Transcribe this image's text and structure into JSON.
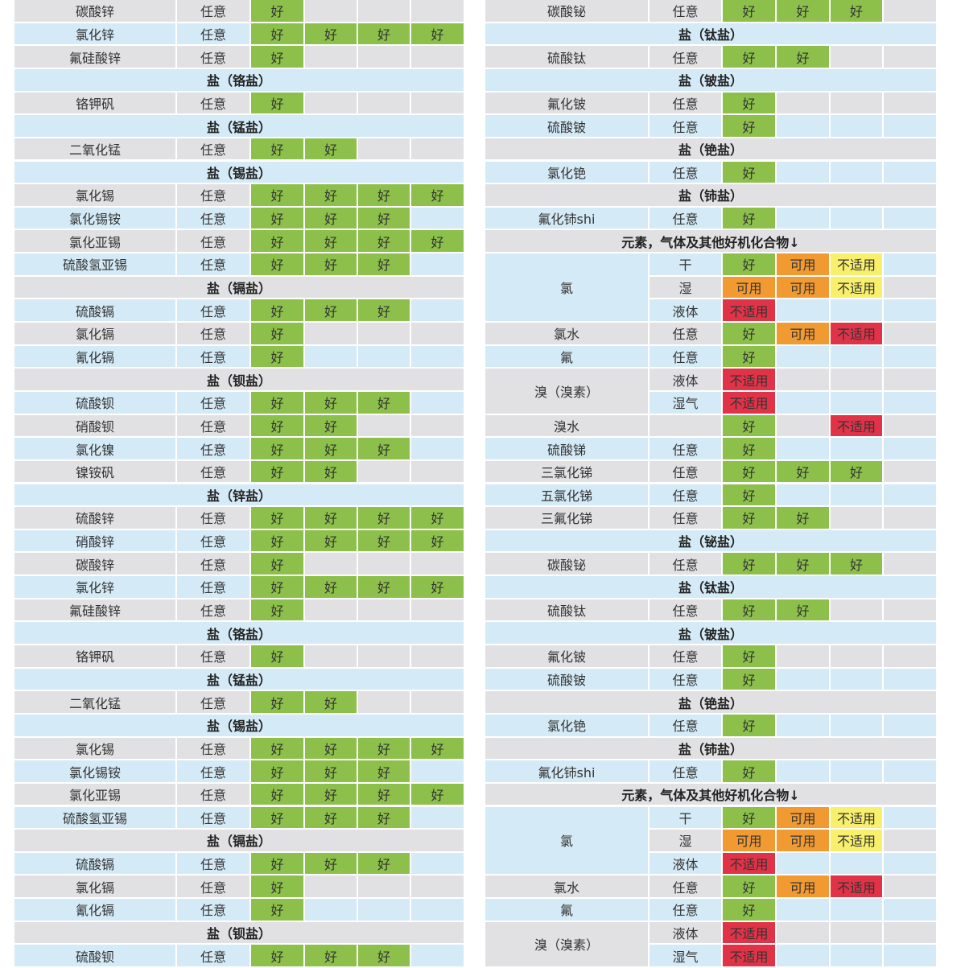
{
  "colors": {
    "gray": "#e1e1e3",
    "blue": "#d4eaf6",
    "green": "#8cc04b",
    "orange": "#f29a32",
    "yellow": "#f8ef6c",
    "red": "#e03348"
  },
  "tables": [
    {
      "rows": [
        {
          "name": "碳酸锌",
          "cond": "任意",
          "ratings": [
            [
              "好",
              "green"
            ]
          ]
        },
        {
          "name": "氯化锌",
          "cond": "任意",
          "ratings": [
            [
              "好",
              "green"
            ],
            [
              "好",
              "green"
            ],
            [
              "好",
              "green"
            ],
            [
              "好",
              "green"
            ]
          ]
        },
        {
          "name": "氟硅酸锌",
          "cond": "任意",
          "ratings": [
            [
              "好",
              "green"
            ]
          ]
        },
        {
          "header": "盐（铬盐）"
        },
        {
          "name": "铬钾矾",
          "cond": "任意",
          "ratings": [
            [
              "好",
              "green"
            ]
          ]
        },
        {
          "header": "盐（锰盐）"
        },
        {
          "name": "二氧化锰",
          "cond": "任意",
          "ratings": [
            [
              "好",
              "green"
            ],
            [
              "好",
              "green"
            ]
          ]
        },
        {
          "header": "盐（锡盐）"
        },
        {
          "name": "氯化锡",
          "cond": "任意",
          "ratings": [
            [
              "好",
              "green"
            ],
            [
              "好",
              "green"
            ],
            [
              "好",
              "green"
            ],
            [
              "好",
              "green"
            ]
          ]
        },
        {
          "name": "氯化锡铵",
          "cond": "任意",
          "ratings": [
            [
              "好",
              "green"
            ],
            [
              "好",
              "green"
            ],
            [
              "好",
              "green"
            ]
          ]
        },
        {
          "name": "氯化亚锡",
          "cond": "任意",
          "ratings": [
            [
              "好",
              "green"
            ],
            [
              "好",
              "green"
            ],
            [
              "好",
              "green"
            ],
            [
              "好",
              "green"
            ]
          ]
        },
        {
          "name": "硫酸氢亚锡",
          "cond": "任意",
          "ratings": [
            [
              "好",
              "green"
            ],
            [
              "好",
              "green"
            ],
            [
              "好",
              "green"
            ]
          ]
        },
        {
          "header": "盐（镉盐）"
        },
        {
          "name": "硫酸镉",
          "cond": "任意",
          "ratings": [
            [
              "好",
              "green"
            ],
            [
              "好",
              "green"
            ],
            [
              "好",
              "green"
            ]
          ]
        },
        {
          "name": "氯化镉",
          "cond": "任意",
          "ratings": [
            [
              "好",
              "green"
            ]
          ]
        },
        {
          "name": "氰化镉",
          "cond": "任意",
          "ratings": [
            [
              "好",
              "green"
            ]
          ]
        },
        {
          "header": "盐（钡盐）"
        },
        {
          "name": "硫酸钡",
          "cond": "任意",
          "ratings": [
            [
              "好",
              "green"
            ],
            [
              "好",
              "green"
            ],
            [
              "好",
              "green"
            ]
          ]
        },
        {
          "name": "硝酸钡",
          "cond": "任意",
          "ratings": [
            [
              "好",
              "green"
            ],
            [
              "好",
              "green"
            ]
          ]
        },
        {
          "name": "氯化镍",
          "cond": "任意",
          "ratings": [
            [
              "好",
              "green"
            ],
            [
              "好",
              "green"
            ],
            [
              "好",
              "green"
            ]
          ]
        },
        {
          "name": "镍铵矾",
          "cond": "任意",
          "ratings": [
            [
              "好",
              "green"
            ],
            [
              "好",
              "green"
            ]
          ]
        },
        {
          "header": "盐（锌盐）"
        },
        {
          "name": "硫酸锌",
          "cond": "任意",
          "ratings": [
            [
              "好",
              "green"
            ],
            [
              "好",
              "green"
            ],
            [
              "好",
              "green"
            ],
            [
              "好",
              "green"
            ]
          ]
        },
        {
          "name": "硝酸锌",
          "cond": "任意",
          "ratings": [
            [
              "好",
              "green"
            ],
            [
              "好",
              "green"
            ],
            [
              "好",
              "green"
            ],
            [
              "好",
              "green"
            ]
          ]
        },
        {
          "name": "碳酸锌",
          "cond": "任意",
          "ratings": [
            [
              "好",
              "green"
            ]
          ]
        },
        {
          "name": "氯化锌",
          "cond": "任意",
          "ratings": [
            [
              "好",
              "green"
            ],
            [
              "好",
              "green"
            ],
            [
              "好",
              "green"
            ],
            [
              "好",
              "green"
            ]
          ]
        },
        {
          "name": "氟硅酸锌",
          "cond": "任意",
          "ratings": [
            [
              "好",
              "green"
            ]
          ]
        },
        {
          "header": "盐（铬盐）"
        },
        {
          "name": "铬钾矾",
          "cond": "任意",
          "ratings": [
            [
              "好",
              "green"
            ]
          ]
        },
        {
          "header": "盐（锰盐）"
        },
        {
          "name": "二氧化锰",
          "cond": "任意",
          "ratings": [
            [
              "好",
              "green"
            ],
            [
              "好",
              "green"
            ]
          ]
        },
        {
          "header": "盐（锡盐）"
        },
        {
          "name": "氯化锡",
          "cond": "任意",
          "ratings": [
            [
              "好",
              "green"
            ],
            [
              "好",
              "green"
            ],
            [
              "好",
              "green"
            ],
            [
              "好",
              "green"
            ]
          ]
        },
        {
          "name": "氯化锡铵",
          "cond": "任意",
          "ratings": [
            [
              "好",
              "green"
            ],
            [
              "好",
              "green"
            ],
            [
              "好",
              "green"
            ]
          ]
        },
        {
          "name": "氯化亚锡",
          "cond": "任意",
          "ratings": [
            [
              "好",
              "green"
            ],
            [
              "好",
              "green"
            ],
            [
              "好",
              "green"
            ],
            [
              "好",
              "green"
            ]
          ]
        },
        {
          "name": "硫酸氢亚锡",
          "cond": "任意",
          "ratings": [
            [
              "好",
              "green"
            ],
            [
              "好",
              "green"
            ],
            [
              "好",
              "green"
            ]
          ]
        },
        {
          "header": "盐（镉盐）"
        },
        {
          "name": "硫酸镉",
          "cond": "任意",
          "ratings": [
            [
              "好",
              "green"
            ],
            [
              "好",
              "green"
            ],
            [
              "好",
              "green"
            ]
          ]
        },
        {
          "name": "氯化镉",
          "cond": "任意",
          "ratings": [
            [
              "好",
              "green"
            ]
          ]
        },
        {
          "name": "氰化镉",
          "cond": "任意",
          "ratings": [
            [
              "好",
              "green"
            ]
          ]
        },
        {
          "header": "盐（钡盐）"
        },
        {
          "name": "硫酸钡",
          "cond": "任意",
          "ratings": [
            [
              "好",
              "green"
            ],
            [
              "好",
              "green"
            ],
            [
              "好",
              "green"
            ]
          ]
        }
      ]
    },
    {
      "rows": [
        {
          "name": "碳酸铋",
          "cond": "任意",
          "ratings": [
            [
              "好",
              "green"
            ],
            [
              "好",
              "green"
            ],
            [
              "好",
              "green"
            ]
          ]
        },
        {
          "header": "盐（钛盐）"
        },
        {
          "name": "硫酸钛",
          "cond": "任意",
          "ratings": [
            [
              "好",
              "green"
            ],
            [
              "好",
              "green"
            ]
          ]
        },
        {
          "header": "盐（铍盐）"
        },
        {
          "name": "氟化铍",
          "cond": "任意",
          "ratings": [
            [
              "好",
              "green"
            ]
          ]
        },
        {
          "name": "硫酸铍",
          "cond": "任意",
          "ratings": [
            [
              "好",
              "green"
            ]
          ]
        },
        {
          "header": "盐（铯盐）"
        },
        {
          "name": "氯化铯",
          "cond": "任意",
          "ratings": [
            [
              "好",
              "green"
            ]
          ]
        },
        {
          "header": "盐（铈盐）"
        },
        {
          "name": "氟化铈shi",
          "cond": "任意",
          "ratings": [
            [
              "好",
              "green"
            ]
          ]
        },
        {
          "header": "元素，气体及其他好机化合物↓"
        },
        {
          "name": "氯",
          "rowspan": 3,
          "cond": "干",
          "ratings": [
            [
              "好",
              "green"
            ],
            [
              "可用",
              "orange"
            ],
            [
              "不适用",
              "yellow"
            ]
          ]
        },
        {
          "cond": "湿",
          "ratings": [
            [
              "可用",
              "orange"
            ],
            [
              "可用",
              "orange"
            ],
            [
              "不适用",
              "yellow"
            ]
          ]
        },
        {
          "cond": "液体",
          "ratings": [
            [
              "不适用",
              "red"
            ]
          ]
        },
        {
          "name": "氯水",
          "cond": "任意",
          "ratings": [
            [
              "好",
              "green"
            ],
            [
              "可用",
              "orange"
            ],
            [
              "不适用",
              "red"
            ]
          ]
        },
        {
          "name": "氟",
          "cond": "任意",
          "ratings": [
            [
              "好",
              "green"
            ]
          ]
        },
        {
          "name": "溴（溴素）",
          "rowspan": 2,
          "cond": "液体",
          "ratings": [
            [
              "不适用",
              "red"
            ]
          ]
        },
        {
          "cond": "湿气",
          "ratings": [
            [
              "不适用",
              "red"
            ]
          ]
        },
        {
          "name": "溴水",
          "cond": "",
          "ratings": [
            [
              "好",
              "green"
            ],
            null,
            [
              "不适用",
              "red"
            ]
          ]
        },
        {
          "name": "硫酸锑",
          "cond": "任意",
          "ratings": [
            [
              "好",
              "green"
            ]
          ]
        },
        {
          "name": "三氯化锑",
          "cond": "任意",
          "ratings": [
            [
              "好",
              "green"
            ],
            [
              "好",
              "green"
            ],
            [
              "好",
              "green"
            ]
          ]
        },
        {
          "name": "五氯化锑",
          "cond": "任意",
          "ratings": [
            [
              "好",
              "green"
            ]
          ]
        },
        {
          "name": "三氟化锑",
          "cond": "任意",
          "ratings": [
            [
              "好",
              "green"
            ],
            [
              "好",
              "green"
            ]
          ]
        },
        {
          "header": "盐（铋盐）"
        },
        {
          "name": "碳酸铋",
          "cond": "任意",
          "ratings": [
            [
              "好",
              "green"
            ],
            [
              "好",
              "green"
            ],
            [
              "好",
              "green"
            ]
          ]
        },
        {
          "header": "盐（钛盐）"
        },
        {
          "name": "硫酸钛",
          "cond": "任意",
          "ratings": [
            [
              "好",
              "green"
            ],
            [
              "好",
              "green"
            ]
          ]
        },
        {
          "header": "盐（铍盐）"
        },
        {
          "name": "氟化铍",
          "cond": "任意",
          "ratings": [
            [
              "好",
              "green"
            ]
          ]
        },
        {
          "name": "硫酸铍",
          "cond": "任意",
          "ratings": [
            [
              "好",
              "green"
            ]
          ]
        },
        {
          "header": "盐（铯盐）"
        },
        {
          "name": "氯化铯",
          "cond": "任意",
          "ratings": [
            [
              "好",
              "green"
            ]
          ]
        },
        {
          "header": "盐（铈盐）"
        },
        {
          "name": "氟化铈shi",
          "cond": "任意",
          "ratings": [
            [
              "好",
              "green"
            ]
          ]
        },
        {
          "header": "元素，气体及其他好机化合物↓"
        },
        {
          "name": "氯",
          "rowspan": 3,
          "cond": "干",
          "ratings": [
            [
              "好",
              "green"
            ],
            [
              "可用",
              "orange"
            ],
            [
              "不适用",
              "yellow"
            ]
          ]
        },
        {
          "cond": "湿",
          "ratings": [
            [
              "可用",
              "orange"
            ],
            [
              "可用",
              "orange"
            ],
            [
              "不适用",
              "yellow"
            ]
          ]
        },
        {
          "cond": "液体",
          "ratings": [
            [
              "不适用",
              "red"
            ]
          ]
        },
        {
          "name": "氯水",
          "cond": "任意",
          "ratings": [
            [
              "好",
              "green"
            ],
            [
              "可用",
              "orange"
            ],
            [
              "不适用",
              "red"
            ]
          ]
        },
        {
          "name": "氟",
          "cond": "任意",
          "ratings": [
            [
              "好",
              "green"
            ]
          ]
        },
        {
          "name": "溴（溴素）",
          "rowspan": 2,
          "cond": "液体",
          "ratings": [
            [
              "不适用",
              "red"
            ]
          ]
        },
        {
          "cond": "湿气",
          "ratings": [
            [
              "不适用",
              "red"
            ]
          ]
        }
      ]
    }
  ]
}
